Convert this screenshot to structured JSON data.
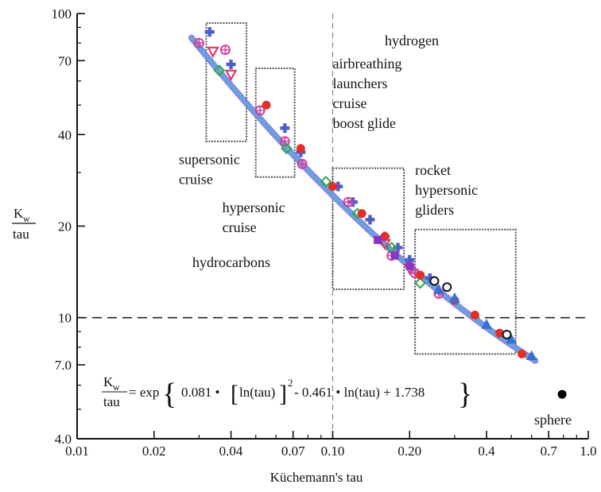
{
  "chart_data": {
    "type": "scatter",
    "title": "",
    "xlabel": "Küchemann's tau",
    "ylabel": {
      "top": "K",
      "sub": "w",
      "bottom": "tau"
    },
    "xscale": "log",
    "yscale": "log",
    "xlim": [
      0.01,
      1.0
    ],
    "ylim": [
      4.0,
      100
    ],
    "xticks": [
      {
        "v": 0.01,
        "label": "0.01"
      },
      {
        "v": 0.02,
        "label": "0.02"
      },
      {
        "v": 0.04,
        "label": "0.04"
      },
      {
        "v": 0.07,
        "label": "0.07"
      },
      {
        "v": 0.1,
        "label": "0.10"
      },
      {
        "v": 0.2,
        "label": "0.20"
      },
      {
        "v": 0.4,
        "label": "0.4"
      },
      {
        "v": 0.7,
        "label": "0.7"
      },
      {
        "v": 1.0,
        "label": "1.0"
      }
    ],
    "yticks": [
      {
        "v": 4.0,
        "label": "4.0"
      },
      {
        "v": 7.0,
        "label": "7.0"
      },
      {
        "v": 10,
        "label": "10"
      },
      {
        "v": 20,
        "label": "20"
      },
      {
        "v": 40,
        "label": "40"
      },
      {
        "v": 70,
        "label": "70"
      },
      {
        "v": 100,
        "label": "100"
      }
    ],
    "reference_lines": {
      "x": 0.1,
      "y": 10
    },
    "fit": {
      "coef_a": 0.081,
      "coef_b": -0.461,
      "coef_c": 1.738,
      "x_range": [
        0.028,
        0.62
      ]
    },
    "regions": [
      {
        "name": "supersonic cruise",
        "x": [
          0.032,
          0.046
        ],
        "y": [
          38,
          93
        ]
      },
      {
        "name": "hypersonic cruise",
        "x": [
          0.05,
          0.071
        ],
        "y": [
          29,
          66
        ]
      },
      {
        "name": "airbreathing launchers cruise boost glide",
        "x": [
          0.1,
          0.19
        ],
        "y": [
          12.4,
          31
        ]
      },
      {
        "name": "rocket hypersonic gliders",
        "x": [
          0.21,
          0.52
        ],
        "y": [
          7.6,
          19.5
        ]
      }
    ],
    "region_labels": [
      {
        "key": "supersonic",
        "lines": [
          "supersonic",
          "cruise"
        ]
      },
      {
        "key": "hypersonic",
        "lines": [
          "hypersonic",
          "cruise"
        ]
      },
      {
        "key": "airbreathing",
        "lines": [
          "airbreathing",
          "launchers",
          "cruise",
          "boost glide"
        ]
      },
      {
        "key": "rocket",
        "lines": [
          "rocket",
          "hypersonic",
          "gliders"
        ]
      }
    ],
    "annotations": {
      "hydrogen": "hydrogen",
      "hydrocarbons": "hydrocarbons",
      "sphere": "sphere"
    },
    "formula": {
      "lhs_top": "K",
      "lhs_sub": "w",
      "lhs_bottom": "tau",
      "rhs": "= exp",
      "body_1": "0.081 • ",
      "body_2": "ln(tau)",
      "body_3": "2",
      "body_4": " - 0.461 • ln(tau) + 1.738"
    },
    "series": [
      {
        "marker": "cross",
        "color": "#4a5fc8",
        "points": [
          [
            0.033,
            87
          ],
          [
            0.04,
            68
          ],
          [
            0.065,
            42
          ],
          [
            0.075,
            35
          ],
          [
            0.105,
            27
          ],
          [
            0.12,
            24
          ],
          [
            0.14,
            21
          ],
          [
            0.16,
            18.5
          ],
          [
            0.18,
            17
          ],
          [
            0.2,
            15.5
          ],
          [
            0.24,
            13.5
          ]
        ]
      },
      {
        "marker": "circle-plus",
        "color": "#d63fa0",
        "points": [
          [
            0.03,
            80
          ],
          [
            0.038,
            76
          ],
          [
            0.052,
            48
          ],
          [
            0.065,
            38
          ],
          [
            0.076,
            32
          ],
          [
            0.115,
            24
          ],
          [
            0.17,
            16
          ],
          [
            0.21,
            14
          ],
          [
            0.26,
            12
          ]
        ]
      },
      {
        "marker": "triangle-down",
        "color": "#e0386a",
        "points": [
          [
            0.034,
            75
          ],
          [
            0.04,
            63
          ],
          [
            0.16,
            17.5
          ],
          [
            0.2,
            14.5
          ]
        ]
      },
      {
        "marker": "diamond",
        "color": "#2ea84a",
        "points": [
          [
            0.036,
            65
          ],
          [
            0.066,
            36
          ],
          [
            0.094,
            28
          ],
          [
            0.125,
            22
          ],
          [
            0.17,
            17
          ],
          [
            0.22,
            13
          ]
        ]
      },
      {
        "marker": "circle",
        "color": "#e23028",
        "points": [
          [
            0.055,
            50
          ],
          [
            0.075,
            36
          ],
          [
            0.1,
            27
          ],
          [
            0.13,
            22
          ],
          [
            0.16,
            18.5
          ],
          [
            0.22,
            13.8
          ],
          [
            0.3,
            11.4
          ],
          [
            0.36,
            10.2
          ],
          [
            0.45,
            8.9
          ],
          [
            0.55,
            7.6
          ]
        ]
      },
      {
        "marker": "triangle-up",
        "color": "#3a6fd6",
        "points": [
          [
            0.26,
            12.4
          ],
          [
            0.3,
            11.6
          ],
          [
            0.4,
            9.5
          ],
          [
            0.5,
            8.5
          ],
          [
            0.6,
            7.5
          ]
        ]
      },
      {
        "marker": "square",
        "color": "#8a34c8",
        "points": [
          [
            0.15,
            18
          ],
          [
            0.175,
            16
          ],
          [
            0.2,
            14.8
          ]
        ]
      },
      {
        "marker": "circle-open",
        "color": "#111111",
        "points": [
          [
            0.25,
            13.2
          ],
          [
            0.28,
            12.6
          ],
          [
            0.48,
            8.8
          ]
        ]
      },
      {
        "marker": "circle",
        "color": "#000000",
        "name": "sphere",
        "points": [
          [
            0.79,
            5.6
          ]
        ]
      }
    ]
  }
}
